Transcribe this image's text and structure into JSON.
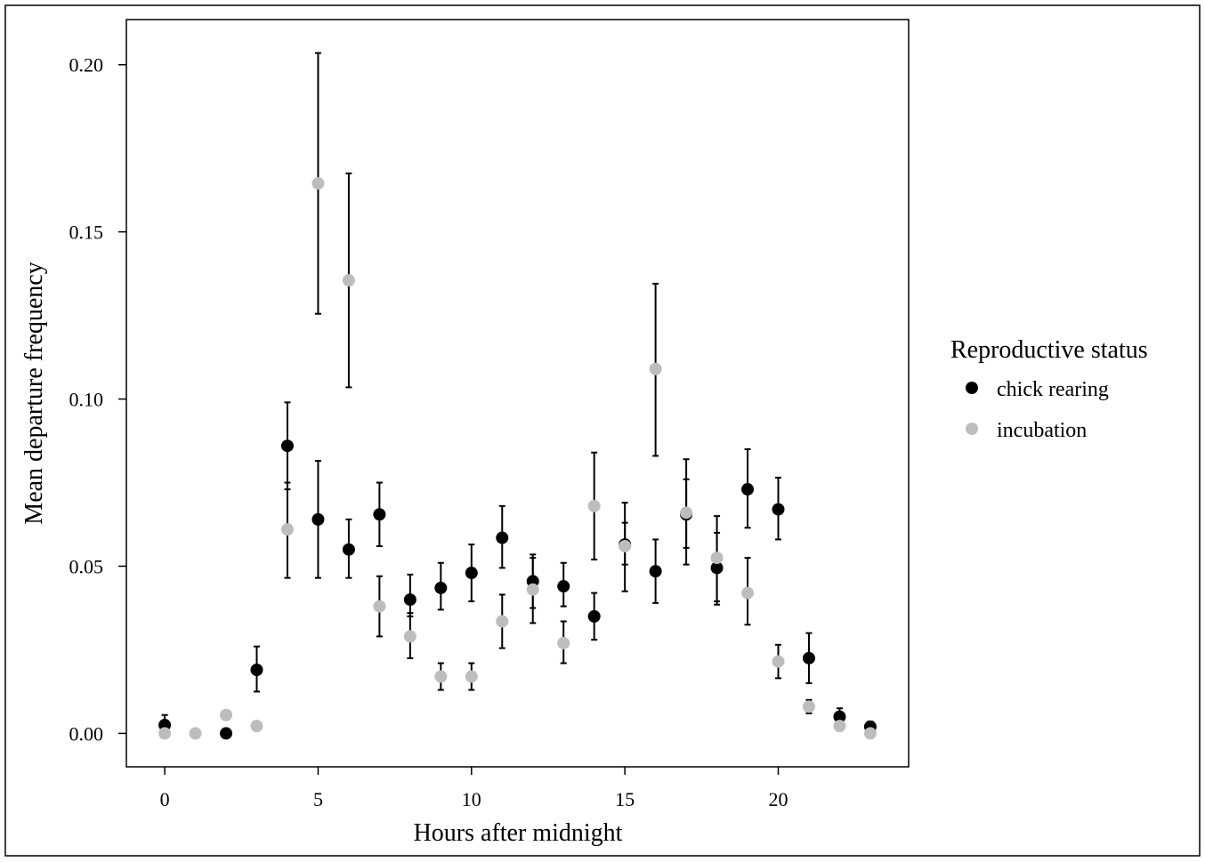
{
  "chart_data": {
    "type": "scatter",
    "xlabel": "Hours after midnight",
    "ylabel": "Mean departure frequency",
    "xlim": [
      -1.25,
      24.25
    ],
    "ylim": [
      -0.01,
      0.2135
    ],
    "x_ticks": [
      0,
      5,
      10,
      15,
      20
    ],
    "x_tick_labels": [
      "0",
      "5",
      "10",
      "15",
      "20"
    ],
    "y_ticks": [
      0.0,
      0.05,
      0.1,
      0.15,
      0.2
    ],
    "y_tick_labels": [
      "0.00",
      "0.05",
      "0.10",
      "0.15",
      "0.20"
    ],
    "grid": false,
    "legend": {
      "title": "Reproductive status",
      "placement": "right"
    },
    "series": [
      {
        "name": "chick rearing",
        "color": "#000000",
        "points": [
          {
            "x": 0,
            "y": 0.0025,
            "lo": 0.0,
            "hi": 0.0055
          },
          {
            "x": 2,
            "y": 0.0,
            "lo": null,
            "hi": null
          },
          {
            "x": 3,
            "y": 0.019,
            "lo": 0.0125,
            "hi": 0.026
          },
          {
            "x": 4,
            "y": 0.086,
            "lo": 0.073,
            "hi": 0.099
          },
          {
            "x": 5,
            "y": 0.064,
            "lo": 0.0465,
            "hi": 0.0815
          },
          {
            "x": 6,
            "y": 0.055,
            "lo": 0.0465,
            "hi": 0.064
          },
          {
            "x": 7,
            "y": 0.0655,
            "lo": 0.056,
            "hi": 0.075
          },
          {
            "x": 8,
            "y": 0.04,
            "lo": 0.035,
            "hi": 0.0475
          },
          {
            "x": 9,
            "y": 0.0435,
            "lo": 0.037,
            "hi": 0.051
          },
          {
            "x": 10,
            "y": 0.048,
            "lo": 0.0395,
            "hi": 0.0565
          },
          {
            "x": 11,
            "y": 0.0585,
            "lo": 0.0495,
            "hi": 0.068
          },
          {
            "x": 12,
            "y": 0.0455,
            "lo": 0.0375,
            "hi": 0.0535
          },
          {
            "x": 13,
            "y": 0.044,
            "lo": 0.038,
            "hi": 0.051
          },
          {
            "x": 14,
            "y": 0.035,
            "lo": 0.028,
            "hi": 0.042
          },
          {
            "x": 15,
            "y": 0.0565,
            "lo": 0.0505,
            "hi": 0.063
          },
          {
            "x": 16,
            "y": 0.0485,
            "lo": 0.039,
            "hi": 0.058
          },
          {
            "x": 17,
            "y": 0.0655,
            "lo": 0.0555,
            "hi": 0.076
          },
          {
            "x": 18,
            "y": 0.0495,
            "lo": 0.0385,
            "hi": 0.06
          },
          {
            "x": 19,
            "y": 0.073,
            "lo": 0.0615,
            "hi": 0.085
          },
          {
            "x": 20,
            "y": 0.067,
            "lo": 0.058,
            "hi": 0.0765
          },
          {
            "x": 21,
            "y": 0.0225,
            "lo": 0.015,
            "hi": 0.03
          },
          {
            "x": 22,
            "y": 0.005,
            "lo": 0.0025,
            "hi": 0.0075
          },
          {
            "x": 23,
            "y": 0.002,
            "lo": 0.0005,
            "hi": 0.0035
          }
        ]
      },
      {
        "name": "incubation",
        "color": "#bdbdbd",
        "points": [
          {
            "x": 0,
            "y": 0.0,
            "lo": null,
            "hi": null
          },
          {
            "x": 1,
            "y": 0.0,
            "lo": null,
            "hi": null
          },
          {
            "x": 2,
            "y": 0.0055,
            "lo": null,
            "hi": null
          },
          {
            "x": 3,
            "y": 0.0022,
            "lo": null,
            "hi": null
          },
          {
            "x": 4,
            "y": 0.061,
            "lo": 0.0465,
            "hi": 0.075
          },
          {
            "x": 5,
            "y": 0.1645,
            "lo": 0.1255,
            "hi": 0.2035
          },
          {
            "x": 6,
            "y": 0.1355,
            "lo": 0.1035,
            "hi": 0.1675
          },
          {
            "x": 7,
            "y": 0.038,
            "lo": 0.029,
            "hi": 0.047
          },
          {
            "x": 8,
            "y": 0.029,
            "lo": 0.0225,
            "hi": 0.036
          },
          {
            "x": 9,
            "y": 0.017,
            "lo": 0.013,
            "hi": 0.021
          },
          {
            "x": 10,
            "y": 0.017,
            "lo": 0.013,
            "hi": 0.021
          },
          {
            "x": 11,
            "y": 0.0335,
            "lo": 0.0255,
            "hi": 0.0415
          },
          {
            "x": 12,
            "y": 0.043,
            "lo": 0.033,
            "hi": 0.0525
          },
          {
            "x": 13,
            "y": 0.027,
            "lo": 0.021,
            "hi": 0.0335
          },
          {
            "x": 14,
            "y": 0.068,
            "lo": 0.052,
            "hi": 0.084
          },
          {
            "x": 15,
            "y": 0.056,
            "lo": 0.0425,
            "hi": 0.069
          },
          {
            "x": 16,
            "y": 0.109,
            "lo": 0.083,
            "hi": 0.1345
          },
          {
            "x": 17,
            "y": 0.066,
            "lo": 0.0505,
            "hi": 0.082
          },
          {
            "x": 18,
            "y": 0.0525,
            "lo": 0.0395,
            "hi": 0.065
          },
          {
            "x": 19,
            "y": 0.042,
            "lo": 0.0325,
            "hi": 0.0525
          },
          {
            "x": 20,
            "y": 0.0215,
            "lo": 0.0165,
            "hi": 0.0265
          },
          {
            "x": 21,
            "y": 0.008,
            "lo": 0.006,
            "hi": 0.01
          },
          {
            "x": 22,
            "y": 0.0022,
            "lo": null,
            "hi": null
          },
          {
            "x": 23,
            "y": 0.0,
            "lo": null,
            "hi": null
          }
        ]
      }
    ]
  }
}
